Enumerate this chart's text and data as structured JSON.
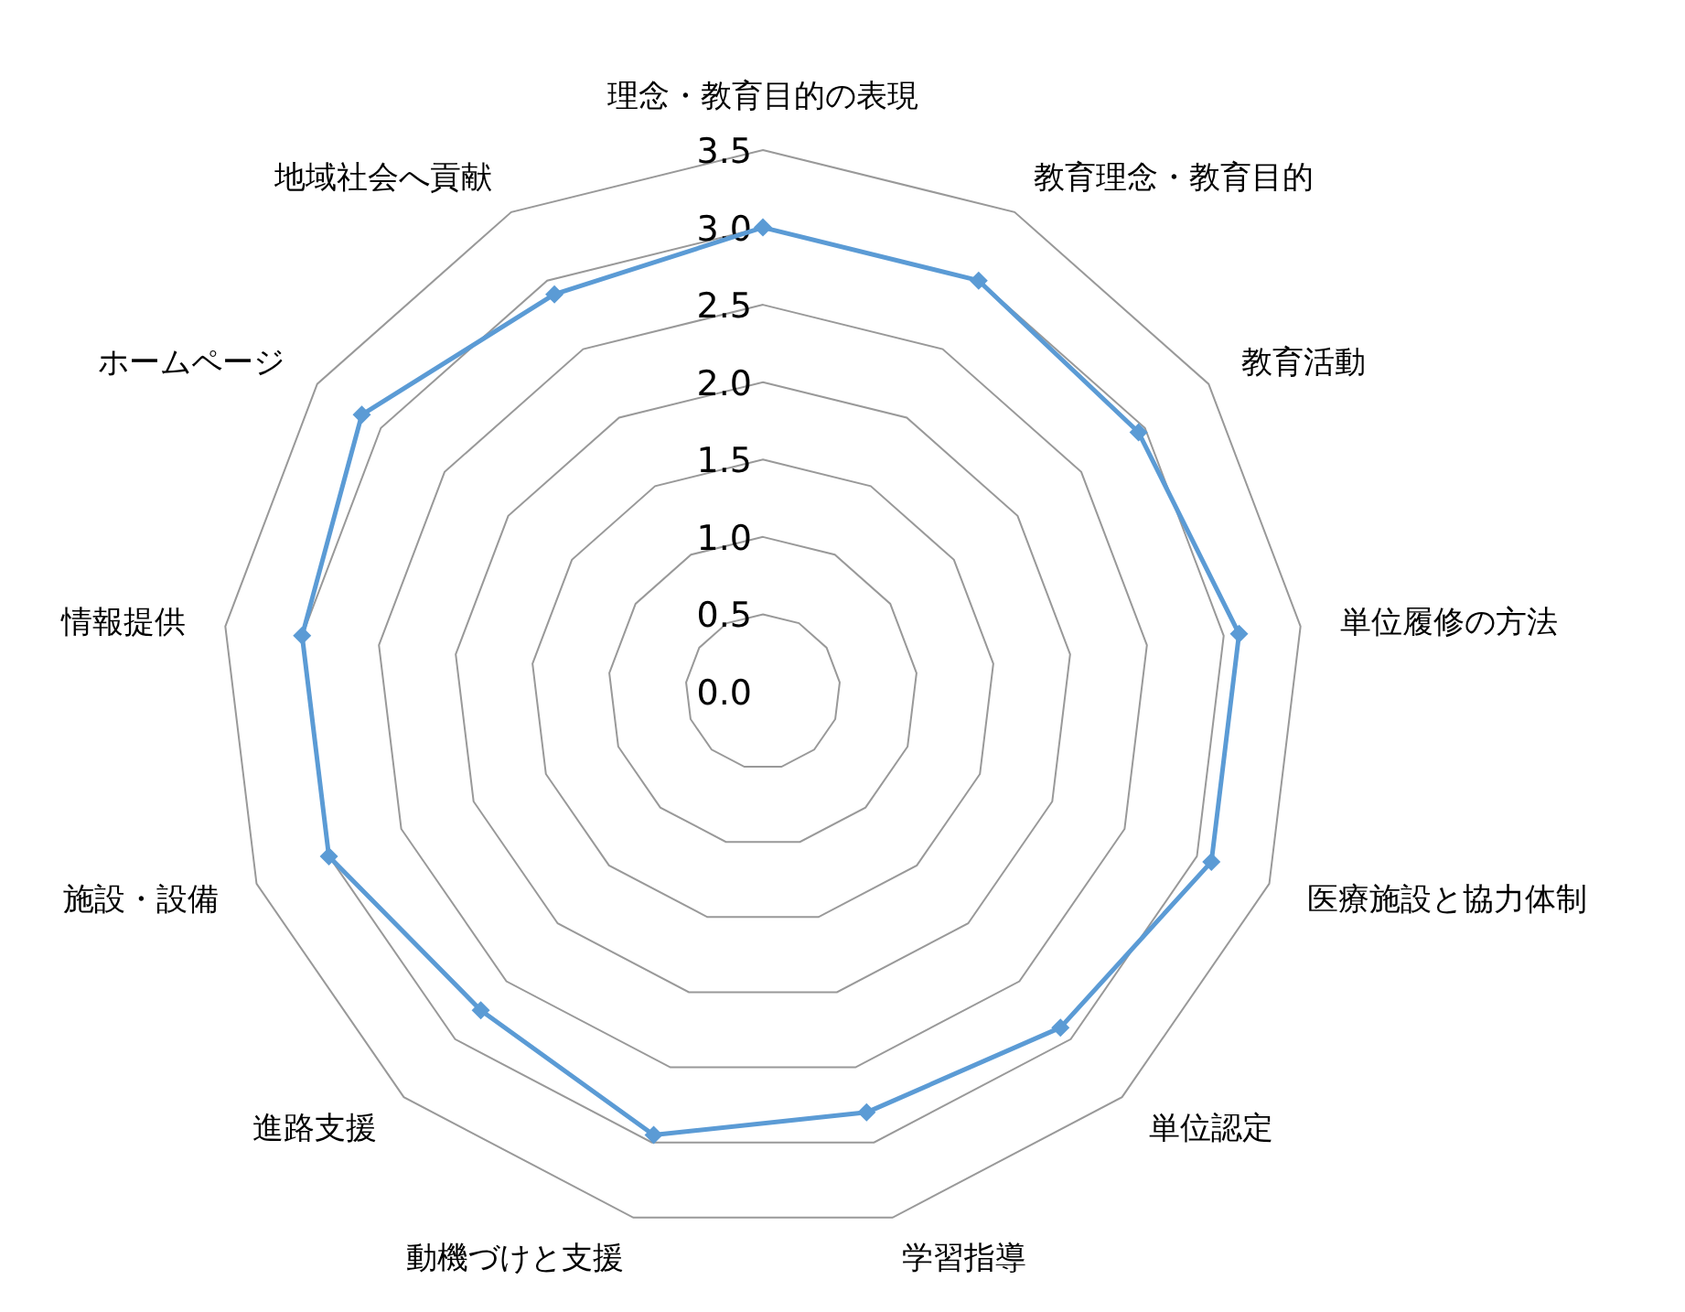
{
  "chart_data": {
    "type": "radar",
    "categories": [
      "理念・教育目的の表現",
      "教育理念・教育目的",
      "教育活動",
      "単位履修の方法",
      "医療施設と協力体制",
      "単位認定",
      "学習指導",
      "動機づけと支援",
      "進路支援",
      "施設・設備",
      "情報提供",
      "ホームページ",
      "地域社会へ貢献"
    ],
    "series": [
      {
        "color": "#5b9bd5",
        "values": [
          3.0,
          3.0,
          2.95,
          3.1,
          3.1,
          2.9,
          2.8,
          2.95,
          2.75,
          3.0,
          3.0,
          3.15,
          2.9
        ]
      }
    ],
    "ylim": [
      0,
      3.5
    ],
    "yticks": [
      {
        "value": 0,
        "label": "0.0"
      },
      {
        "value": 0.5,
        "label": "0.5"
      },
      {
        "value": 1,
        "label": "1.0"
      },
      {
        "value": 1.5,
        "label": "1.5"
      },
      {
        "value": 2,
        "label": "2.0"
      },
      {
        "value": 2.5,
        "label": "2.5"
      },
      {
        "value": 3,
        "label": "3.0"
      },
      {
        "value": 3.5,
        "label": "3.5"
      }
    ],
    "grid": true,
    "marker": "diamond",
    "line_style": "solid"
  }
}
